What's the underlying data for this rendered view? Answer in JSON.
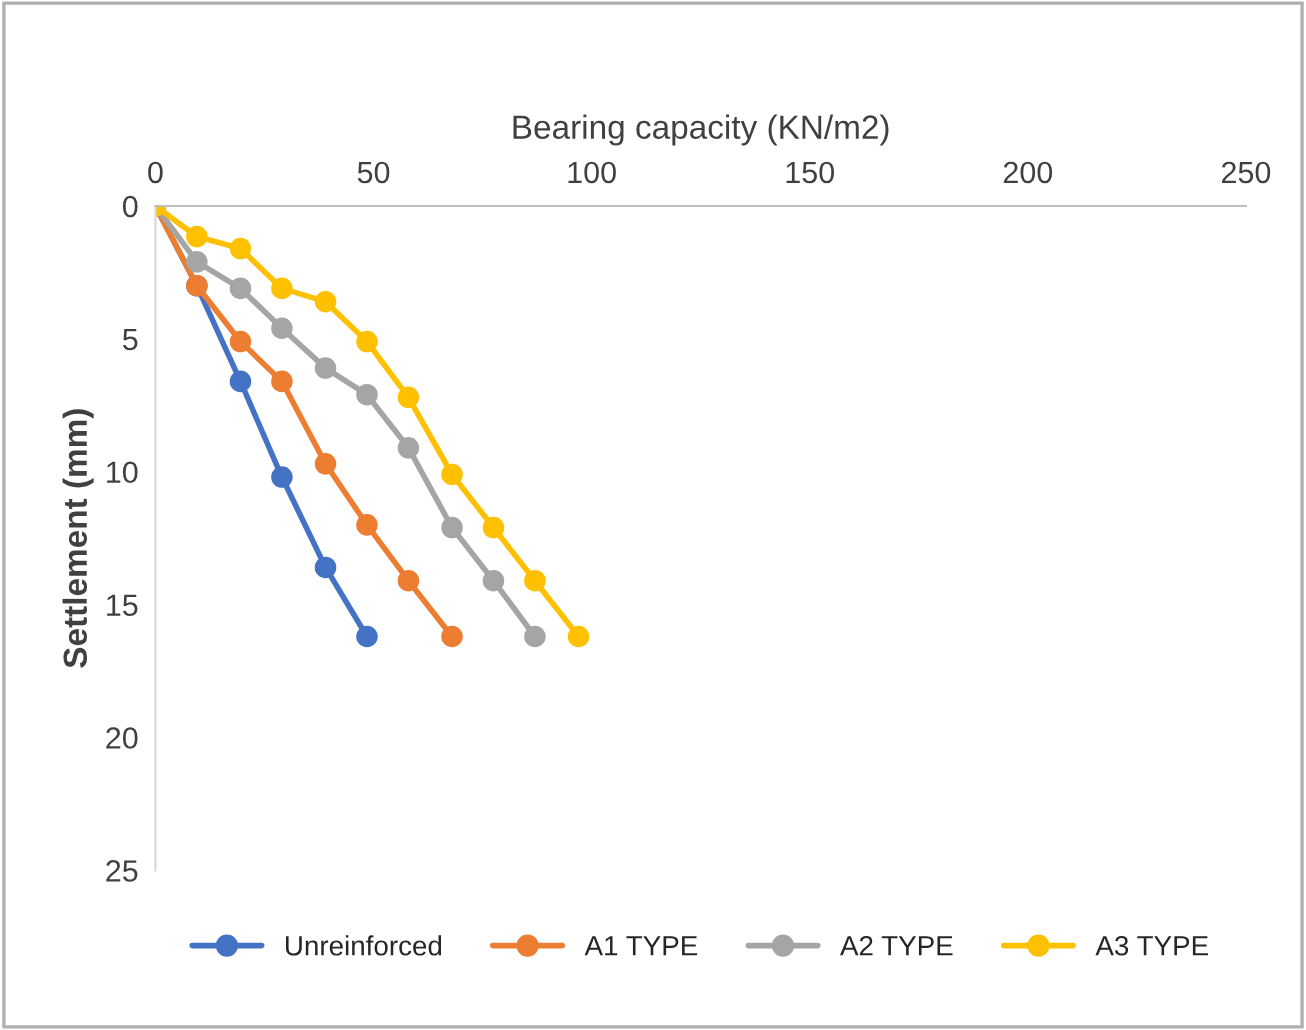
{
  "chart_data": {
    "type": "line",
    "xlabel": "Bearing capacity (KN/m2)",
    "ylabel": "Settlement (mm)",
    "xlim": [
      0,
      250
    ],
    "xticks": [
      0,
      50,
      100,
      150,
      200,
      250
    ],
    "ylim": [
      25,
      0
    ],
    "yticks": [
      0,
      5,
      10,
      15,
      20,
      25
    ],
    "grid": false,
    "legend": "bottom",
    "marker": "circle",
    "line_style": "solid",
    "series": [
      {
        "name": "Unreinforced",
        "color": "#4472c4",
        "x": [
          0,
          9.5,
          19.5,
          29,
          39,
          48.5
        ],
        "values": [
          0,
          3.0,
          6.6,
          10.2,
          13.6,
          16.2
        ]
      },
      {
        "name": "A1 TYPE",
        "color": "#ed7d31",
        "x": [
          0,
          9.5,
          19.5,
          29,
          39,
          48.5,
          58,
          68
        ],
        "values": [
          0,
          3.0,
          5.1,
          6.6,
          9.7,
          12.0,
          14.1,
          16.2
        ]
      },
      {
        "name": "A2 TYPE",
        "color": "#a5a5a5",
        "x": [
          0,
          9.5,
          19.5,
          29,
          39,
          48.5,
          58,
          68,
          77.5,
          87
        ],
        "values": [
          0,
          2.1,
          3.1,
          4.6,
          6.1,
          7.1,
          9.1,
          12.1,
          14.1,
          16.2
        ]
      },
      {
        "name": "A3 TYPE",
        "color": "#ffc000",
        "x": [
          0,
          9.5,
          19.5,
          29,
          39,
          48.5,
          58,
          68,
          77.5,
          87,
          97
        ],
        "values": [
          0,
          1.15,
          1.6,
          3.1,
          3.6,
          5.1,
          7.2,
          10.1,
          12.1,
          14.1,
          16.2
        ]
      }
    ]
  }
}
